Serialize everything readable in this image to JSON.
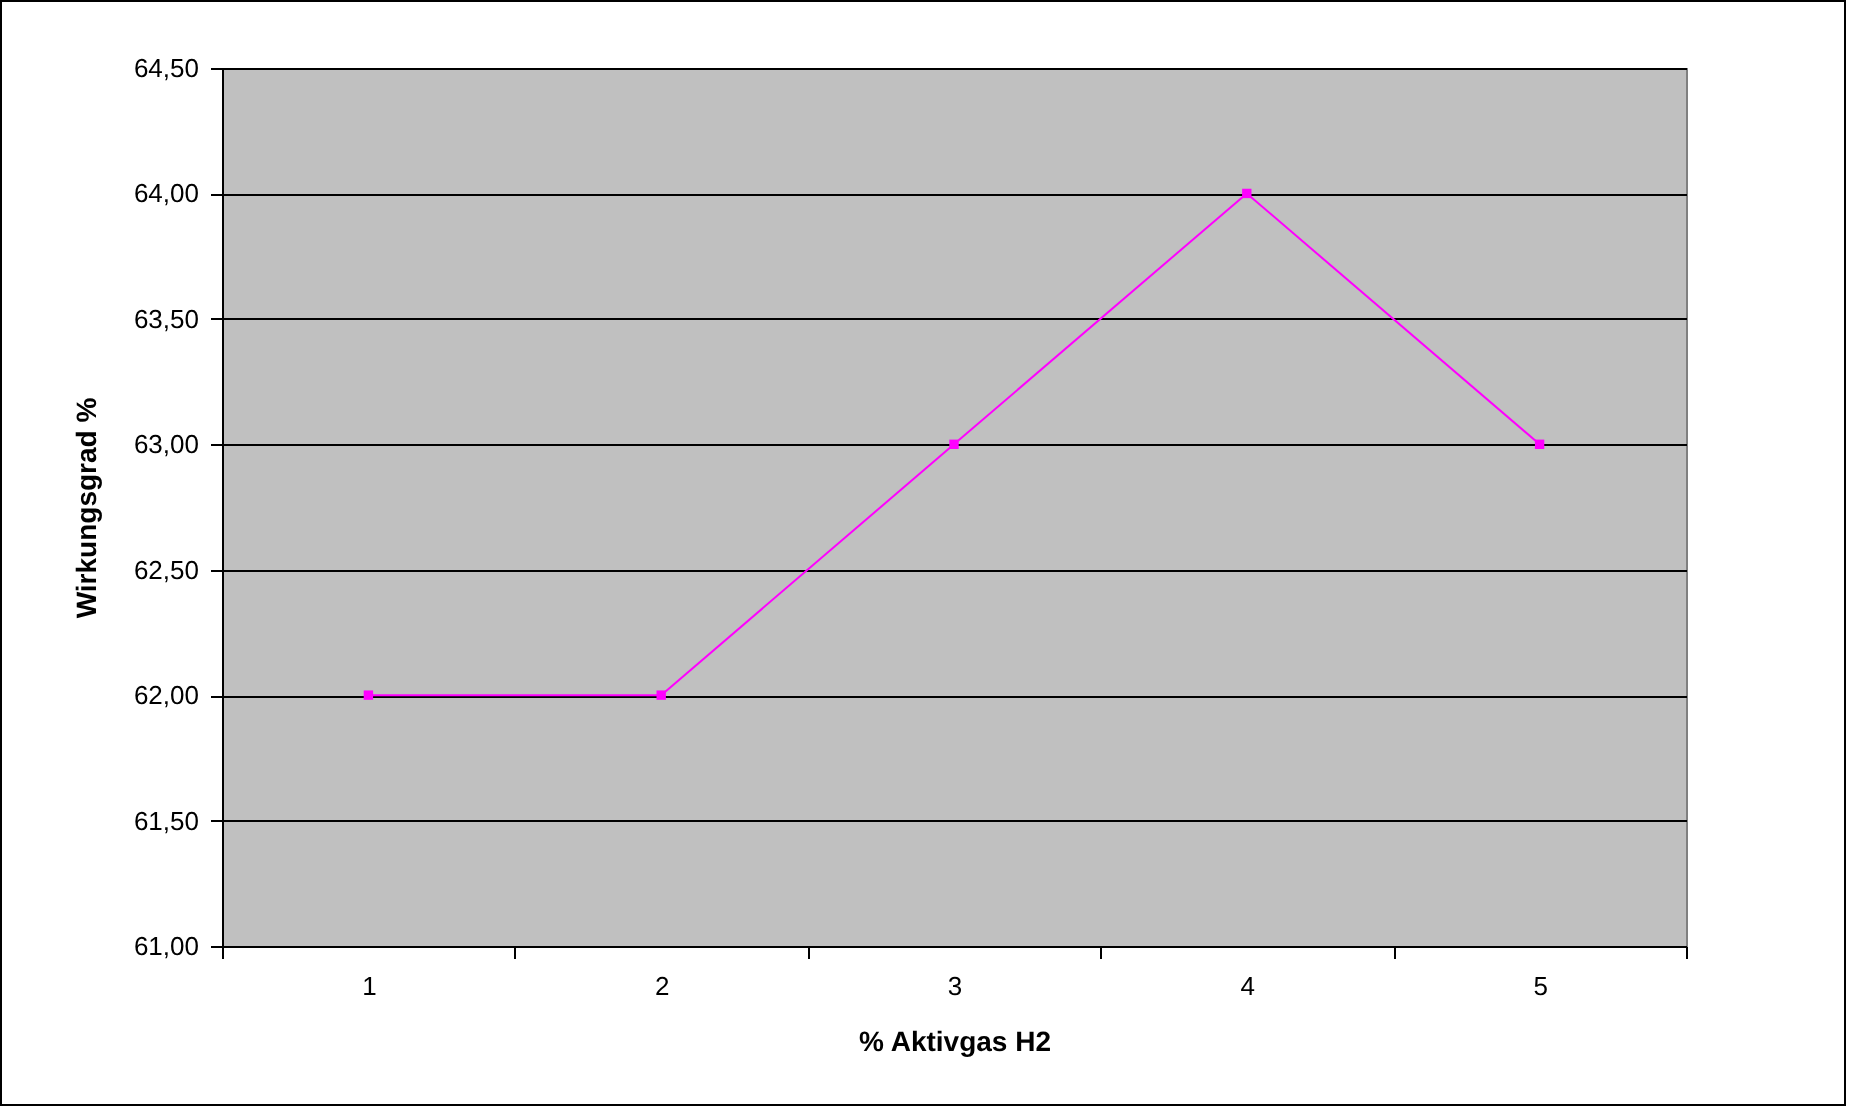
{
  "chart_data": {
    "type": "line",
    "xlabel": "% Aktivgas H2",
    "ylabel": "Wirkungsgrad %",
    "categories": [
      "1",
      "2",
      "3",
      "4",
      "5"
    ],
    "series": [
      {
        "color": "#ff00ff",
        "values": [
          62,
          62,
          63,
          64,
          63
        ]
      }
    ],
    "ylim": [
      61,
      64.5
    ],
    "yticks": [
      {
        "value": 61,
        "label": "61,00"
      },
      {
        "value": 61.5,
        "label": "61,50"
      },
      {
        "value": 62,
        "label": "62,00"
      },
      {
        "value": 62.5,
        "label": "62,50"
      },
      {
        "value": 63,
        "label": "63,00"
      },
      {
        "value": 63.5,
        "label": "63,50"
      },
      {
        "value": 64,
        "label": "64,00"
      },
      {
        "value": 64.5,
        "label": "64,50"
      }
    ],
    "grid": "y",
    "marker": "square",
    "line_style": "solid"
  }
}
